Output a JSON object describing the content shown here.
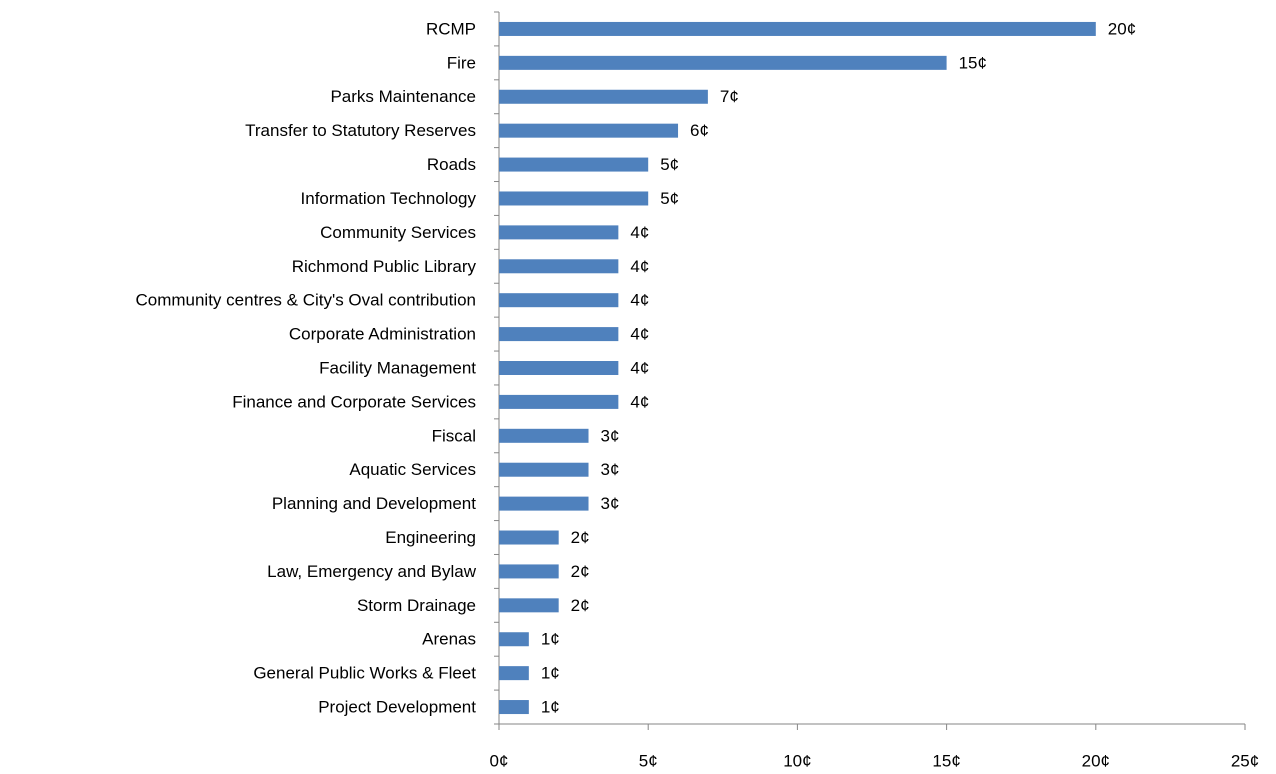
{
  "chart_data": {
    "type": "bar",
    "orientation": "horizontal",
    "categories": [
      "RCMP",
      "Fire",
      "Parks Maintenance",
      "Transfer to Statutory Reserves",
      "Roads",
      "Information Technology",
      "Community Services",
      "Richmond Public Library",
      "Community centres & City's Oval contribution",
      "Corporate Administration",
      "Facility Management",
      "Finance and Corporate Services",
      "Fiscal",
      "Aquatic Services",
      "Planning and Development",
      "Engineering",
      "Law, Emergency and Bylaw",
      "Storm Drainage",
      "Arenas",
      "General Public Works & Fleet",
      "Project Development"
    ],
    "values": [
      20,
      15,
      7,
      6,
      5,
      5,
      4,
      4,
      4,
      4,
      4,
      4,
      3,
      3,
      3,
      2,
      2,
      2,
      1,
      1,
      1
    ],
    "value_labels": [
      "20¢",
      "15¢",
      "7¢",
      "6¢",
      "5¢",
      "5¢",
      "4¢",
      "4¢",
      "4¢",
      "4¢",
      "4¢",
      "4¢",
      "3¢",
      "3¢",
      "3¢",
      "2¢",
      "2¢",
      "2¢",
      "1¢",
      "1¢",
      "1¢"
    ],
    "color": "#4f81bd",
    "xlim": [
      0,
      25
    ],
    "xticks": [
      {
        "value": 0,
        "label": "0¢"
      },
      {
        "value": 5,
        "label": "5¢"
      },
      {
        "value": 10,
        "label": "10¢"
      },
      {
        "value": 15,
        "label": "15¢"
      },
      {
        "value": 20,
        "label": "20¢"
      },
      {
        "value": 25,
        "label": "25¢"
      }
    ],
    "grid": false
  }
}
